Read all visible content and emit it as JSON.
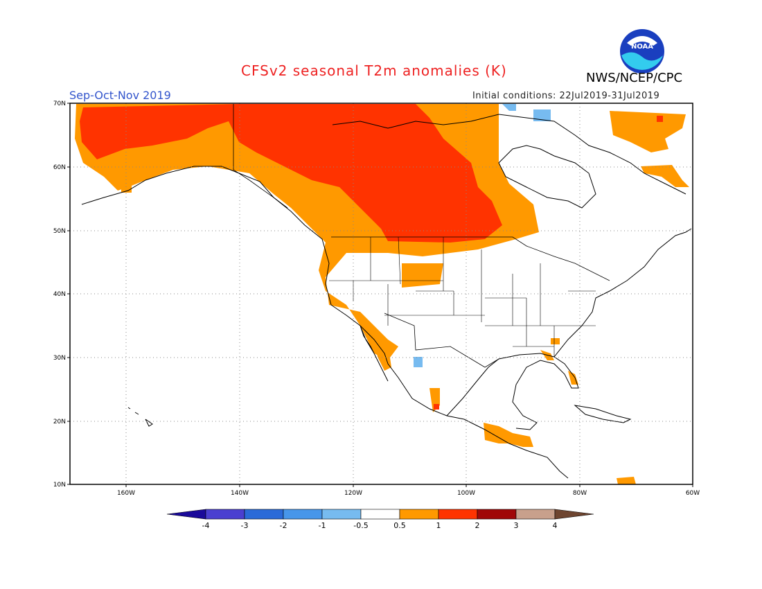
{
  "header": {
    "title": "CFSv2 seasonal T2m anomalies (K)",
    "agency": "NWS/NCEP/CPC",
    "season": "Sep-Oct-Nov 2019",
    "initial_conditions": "Initial conditions: 22Jul2019-31Jul2019",
    "logo_text": "NOAA"
  },
  "colors": {
    "title": "#ee2222",
    "season": "#3355cc",
    "warm_05_1": "#ff9900",
    "warm_1_2": "#ff3300",
    "cool_05_1": "#77bbf0"
  },
  "axes": {
    "lat_labels": [
      "70N",
      "60N",
      "50N",
      "40N",
      "30N",
      "20N",
      "10N"
    ],
    "lon_labels": [
      "160W",
      "140W",
      "120W",
      "100W",
      "80W",
      "60W"
    ]
  },
  "colorbar": {
    "labels": [
      "-4",
      "-3",
      "-2",
      "-1",
      "-0.5",
      "0.5",
      "1",
      "2",
      "3",
      "4"
    ],
    "colors": [
      "#1a0a9a",
      "#4a3fd0",
      "#2a6ad8",
      "#4796ea",
      "#77bbf0",
      "#ffffff",
      "#ff9900",
      "#ff3300",
      "#a00808",
      "#c8a08c",
      "#6e4530"
    ]
  }
}
